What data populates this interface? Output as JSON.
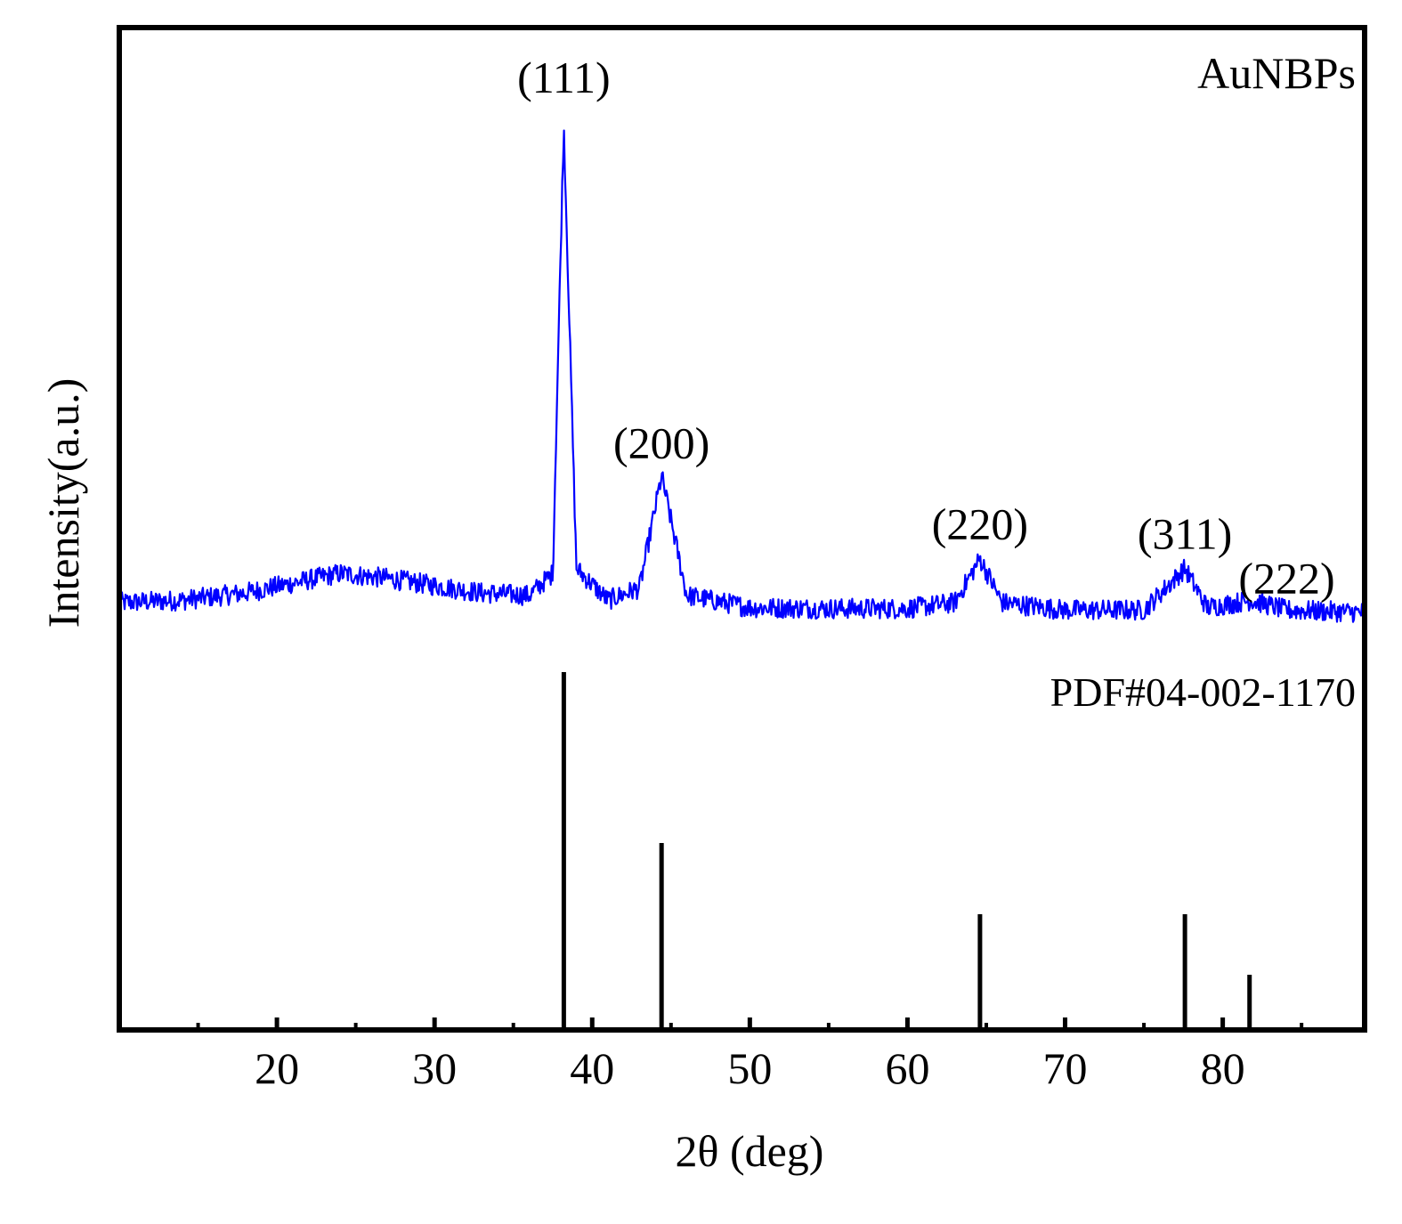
{
  "chart_data": {
    "type": "line",
    "title": "",
    "xlabel": "2θ (deg)",
    "ylabel": "Intensity(a.u.)",
    "xlim": [
      10,
      89
    ],
    "x_ticks": [
      20,
      30,
      40,
      50,
      60,
      70,
      80
    ],
    "x_minor_ticks": [
      15,
      25,
      35,
      45,
      55,
      65,
      75,
      85
    ],
    "grid": false,
    "colors": {
      "pattern": "#0000ff",
      "reference": "#000000",
      "axes": "#000000"
    },
    "series": [
      {
        "name": "AuNBPs",
        "type": "line",
        "peaks": [
          {
            "x": 38.2,
            "label": "(111)"
          },
          {
            "x": 44.4,
            "label": "(200)"
          },
          {
            "x": 64.6,
            "label": "(220)"
          },
          {
            "x": 77.6,
            "label": "(311)"
          },
          {
            "x": 81.8,
            "label": "(222)"
          }
        ],
        "profile": {
          "x": [
            10,
            14,
            18,
            21,
            24,
            27,
            30,
            33,
            36,
            37.5,
            38.2,
            39,
            41,
            43,
            44.4,
            46,
            50,
            55,
            60,
            63,
            64.6,
            66,
            70,
            75,
            77.6,
            79,
            81.8,
            84,
            89
          ],
          "y": [
            2.0,
            2.5,
            4.0,
            6.0,
            8.0,
            7.0,
            5.5,
            4.0,
            3.5,
            8.0,
            100.0,
            9.0,
            2.5,
            5.0,
            28.0,
            3.5,
            1.0,
            0.8,
            0.8,
            2.0,
            11.0,
            2.0,
            0.5,
            0.5,
            9.0,
            1.0,
            2.5,
            0.5,
            0.0
          ]
        }
      },
      {
        "name": "PDF#04-002-1170",
        "type": "stick",
        "x": [
          38.2,
          44.4,
          64.6,
          77.6,
          81.7
        ],
        "y": [
          100,
          52,
          32,
          32,
          15
        ]
      }
    ],
    "annotations": [
      {
        "text": "AuNBPs",
        "position": "top-right"
      },
      {
        "text": "PDF#04-002-1170",
        "position": "right, below pattern"
      }
    ]
  }
}
